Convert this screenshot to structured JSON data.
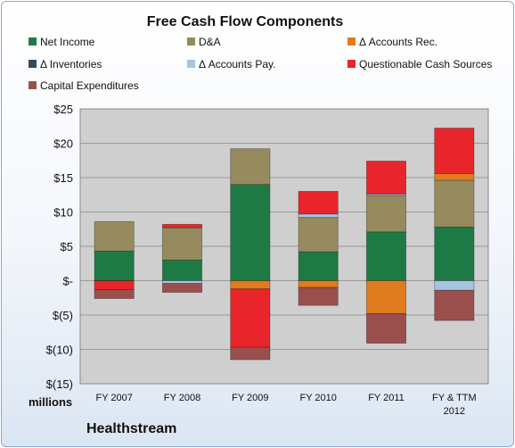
{
  "chart_data": {
    "type": "bar",
    "stacked": true,
    "title": "Free Cash Flow Components",
    "company": "Healthstream",
    "units_label": "millions",
    "categories": [
      "FY 2007",
      "FY 2008",
      "FY 2009",
      "FY 2010",
      "FY 2011",
      "FY & TTM 2012"
    ],
    "ylim": [
      -15,
      25
    ],
    "yticks": [
      25,
      20,
      15,
      10,
      5,
      0,
      -5,
      -10,
      -15
    ],
    "ytick_labels": [
      "$25",
      "$20",
      "$15",
      "$10",
      "$5",
      "$-",
      "$(5)",
      "$(10)",
      "$(15)"
    ],
    "legend_position": "top",
    "grid": true,
    "series": [
      {
        "name": "Net Income",
        "color": "#1e7a45",
        "values": [
          4.3,
          3.0,
          14.0,
          4.2,
          7.1,
          7.8
        ]
      },
      {
        "name": "D&A",
        "color": "#958b5e",
        "values": [
          4.3,
          4.7,
          5.2,
          5.0,
          5.3,
          6.8
        ]
      },
      {
        "name": "Δ Accounts Rec.",
        "color": "#e07b1f",
        "values": [
          0,
          0,
          -1.2,
          -1.0,
          -4.8,
          1.0
        ]
      },
      {
        "name": "Δ Inventories",
        "color": "#34495e",
        "values": [
          0,
          0,
          0,
          0,
          0,
          0
        ]
      },
      {
        "name": "Δ Accounts Pay.",
        "color": "#a6c4e2",
        "values": [
          0,
          -0.4,
          0,
          0.5,
          0.2,
          -1.4
        ]
      },
      {
        "name": "Questionable Cash Sources",
        "color": "#e8252a",
        "values": [
          -1.3,
          0.5,
          -8.5,
          3.3,
          4.8,
          6.6
        ]
      },
      {
        "name": "Capital Expenditures",
        "color": "#9a4f4d",
        "values": [
          -1.3,
          -1.3,
          -1.8,
          -2.6,
          -4.3,
          -4.4
        ]
      }
    ]
  }
}
